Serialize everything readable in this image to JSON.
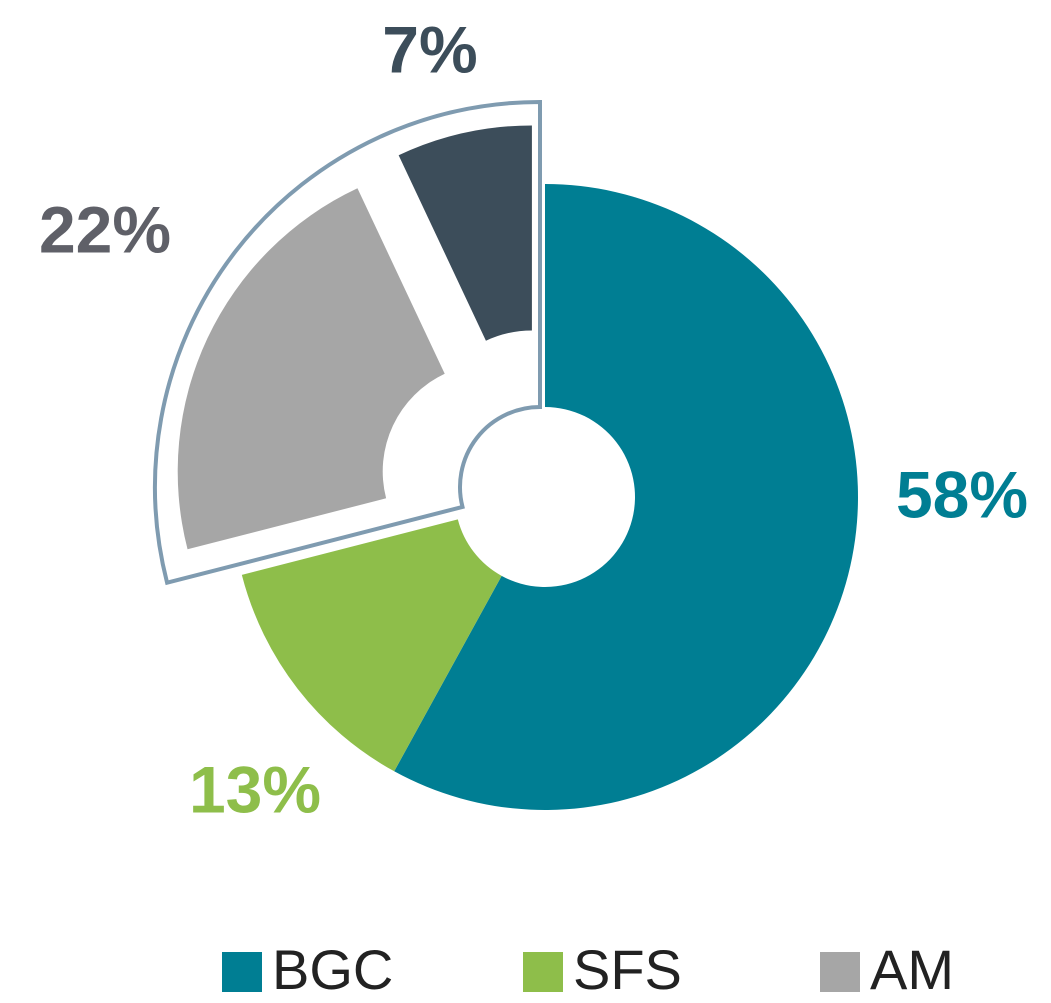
{
  "chart_data": {
    "type": "donut",
    "categories": [
      "BGC",
      "SFS",
      "AM",
      null
    ],
    "values": [
      58,
      13,
      22,
      7
    ],
    "value_labels": [
      "58%",
      "13%",
      "22%",
      "7%"
    ],
    "colors": [
      "#007e93",
      "#8ebe4a",
      "#a6a6a6",
      "#3c4d5a"
    ],
    "label_colors": [
      "#007e93",
      "#8ebe4a",
      "#5f6068",
      "#3c4d5a"
    ],
    "exploded": [
      false,
      false,
      true,
      true
    ]
  }
}
